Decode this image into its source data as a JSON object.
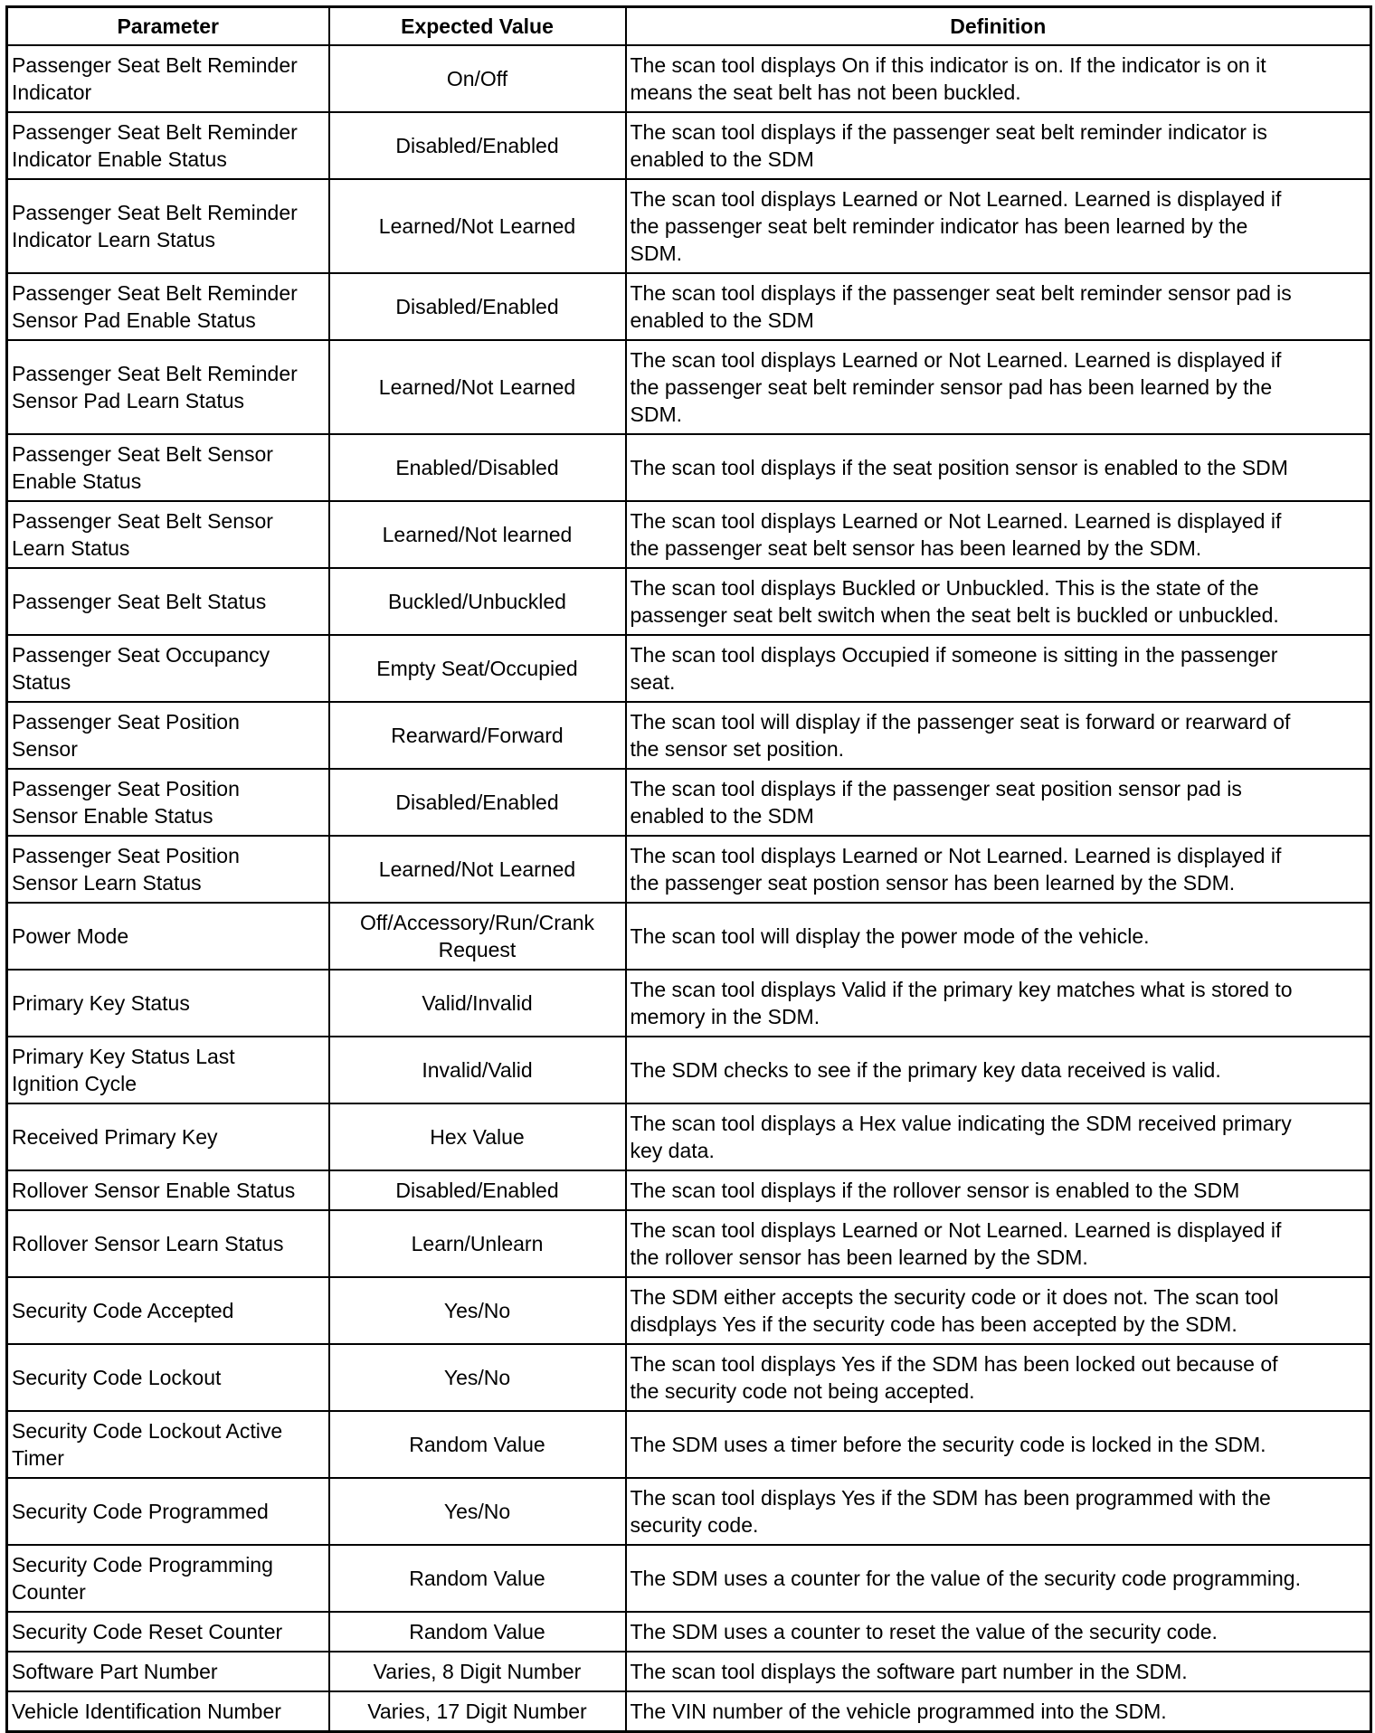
{
  "headers": [
    "Parameter",
    "Expected Value",
    "Definition"
  ],
  "rows": [
    [
      "Passenger Seat Belt Reminder\nIndicator",
      "On/Off",
      "The scan tool displays On if this indicator is on. If the indicator is on it\nmeans the seat belt has not been buckled."
    ],
    [
      "Passenger Seat Belt Reminder\nIndicator Enable Status",
      "Disabled/Enabled",
      "The scan tool displays if the passenger seat belt reminder indicator is\nenabled to the SDM"
    ],
    [
      "Passenger Seat Belt Reminder\nIndicator Learn Status",
      "Learned/Not Learned",
      "The scan tool displays Learned or Not Learned. Learned is displayed if\nthe passenger seat belt reminder indicator has been learned by the\nSDM."
    ],
    [
      "Passenger Seat Belt Reminder\nSensor Pad Enable Status",
      "Disabled/Enabled",
      "The scan tool displays if the passenger seat belt reminder sensor pad is\nenabled to the SDM"
    ],
    [
      "Passenger Seat Belt Reminder\nSensor Pad Learn Status",
      "Learned/Not Learned",
      "The scan tool displays Learned or Not Learned. Learned is displayed if\nthe passenger seat belt reminder sensor pad has been learned by the\nSDM."
    ],
    [
      "Passenger Seat Belt Sensor\nEnable Status",
      "Enabled/Disabled",
      "The scan tool displays if the seat position sensor is enabled to the SDM"
    ],
    [
      "Passenger Seat Belt Sensor\nLearn Status",
      "Learned/Not learned",
      "The scan tool displays Learned or Not Learned. Learned is displayed if\nthe passenger seat belt sensor has been learned by the SDM."
    ],
    [
      "Passenger Seat Belt Status",
      "Buckled/Unbuckled",
      "The scan tool displays Buckled or Unbuckled. This is the state of the\npassenger seat belt switch when the seat belt is buckled or unbuckled."
    ],
    [
      "Passenger Seat Occupancy\nStatus",
      "Empty Seat/Occupied",
      "The scan tool displays Occupied if someone is sitting in the passenger\nseat."
    ],
    [
      "Passenger Seat Position\nSensor",
      "Rearward/Forward",
      "The scan tool will display if the passenger seat is forward or rearward of\nthe sensor set position."
    ],
    [
      "Passenger Seat Position\nSensor Enable Status",
      "Disabled/Enabled",
      "The scan tool displays if the passenger seat position sensor pad is\nenabled to the SDM"
    ],
    [
      "Passenger Seat Position\nSensor Learn Status",
      "Learned/Not Learned",
      "The scan tool displays Learned or Not Learned. Learned is displayed if\nthe passenger seat postion sensor has been learned by the SDM."
    ],
    [
      "Power Mode",
      "Off/Accessory/Run/Crank\nRequest",
      "The scan tool will display the power mode of the vehicle."
    ],
    [
      "Primary Key Status",
      "Valid/Invalid",
      "The scan tool displays Valid if the primary key matches what is stored to\nmemory in the SDM."
    ],
    [
      "Primary Key Status Last\nIgnition Cycle",
      "Invalid/Valid",
      "The SDM checks to see if the primary key data received is valid."
    ],
    [
      "Received Primary Key",
      "Hex Value",
      "The scan tool displays a Hex value indicating the SDM received primary\nkey data."
    ],
    [
      "Rollover Sensor Enable Status",
      "Disabled/Enabled",
      "The scan tool displays if the rollover sensor is enabled to the SDM"
    ],
    [
      "Rollover Sensor Learn Status",
      "Learn/Unlearn",
      "The scan tool displays Learned or Not Learned. Learned is displayed if\nthe rollover sensor has been learned by the SDM."
    ],
    [
      "Security Code Accepted",
      "Yes/No",
      "The SDM either accepts the security code or it does not. The scan tool\ndisdplays Yes if the security code has been accepted by the SDM."
    ],
    [
      "Security Code Lockout",
      "Yes/No",
      "The scan tool displays Yes if the SDM has been locked out because of\nthe security code not being accepted."
    ],
    [
      "Security Code Lockout Active\nTimer",
      "Random Value",
      "The SDM uses a timer before the security code is locked in the SDM."
    ],
    [
      "Security Code Programmed",
      "Yes/No",
      "The scan tool displays Yes if the SDM has been programmed with the\nsecurity code."
    ],
    [
      "Security Code Programming\nCounter",
      "Random Value",
      "The SDM uses a counter for the value of the security code programming."
    ],
    [
      "Security Code Reset Counter",
      "Random Value",
      "The SDM uses a counter to reset the value of the security code."
    ],
    [
      "Software Part Number",
      "Varies, 8 Digit Number",
      "The scan tool displays the software part number in the SDM."
    ],
    [
      "Vehicle Identification Number",
      "Varies, 17 Digit Number",
      "The VIN number of the vehicle programmed into the SDM."
    ]
  ]
}
